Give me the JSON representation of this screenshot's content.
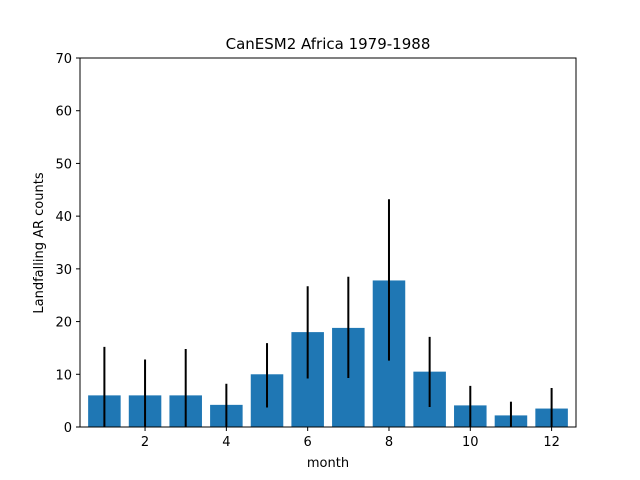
{
  "chart_data": {
    "type": "bar",
    "title": "CanESM2 Africa 1979-1988",
    "xlabel": "month",
    "ylabel": "Landfalling AR counts",
    "x": [
      1,
      2,
      3,
      4,
      5,
      6,
      7,
      8,
      9,
      10,
      11,
      12
    ],
    "values": [
      6,
      6,
      6,
      4.2,
      10,
      18,
      18.8,
      27.8,
      10.5,
      4.1,
      2.2,
      3.5
    ],
    "error_low": [
      0,
      0,
      0,
      0,
      3.7,
      9.2,
      9.3,
      12.6,
      3.8,
      0,
      0,
      0
    ],
    "error_high": [
      15.2,
      12.8,
      14.8,
      8.2,
      15.9,
      26.7,
      28.5,
      43.2,
      17.1,
      7.8,
      4.8,
      7.4
    ],
    "xlim": [
      0.4,
      12.6
    ],
    "ylim": [
      0,
      70
    ],
    "xticks": [
      2,
      4,
      6,
      8,
      10,
      12
    ],
    "yticks": [
      0,
      10,
      20,
      30,
      40,
      50,
      60,
      70
    ],
    "grid": false,
    "bar_color": "#1f77b4",
    "error_color": "#000000"
  }
}
